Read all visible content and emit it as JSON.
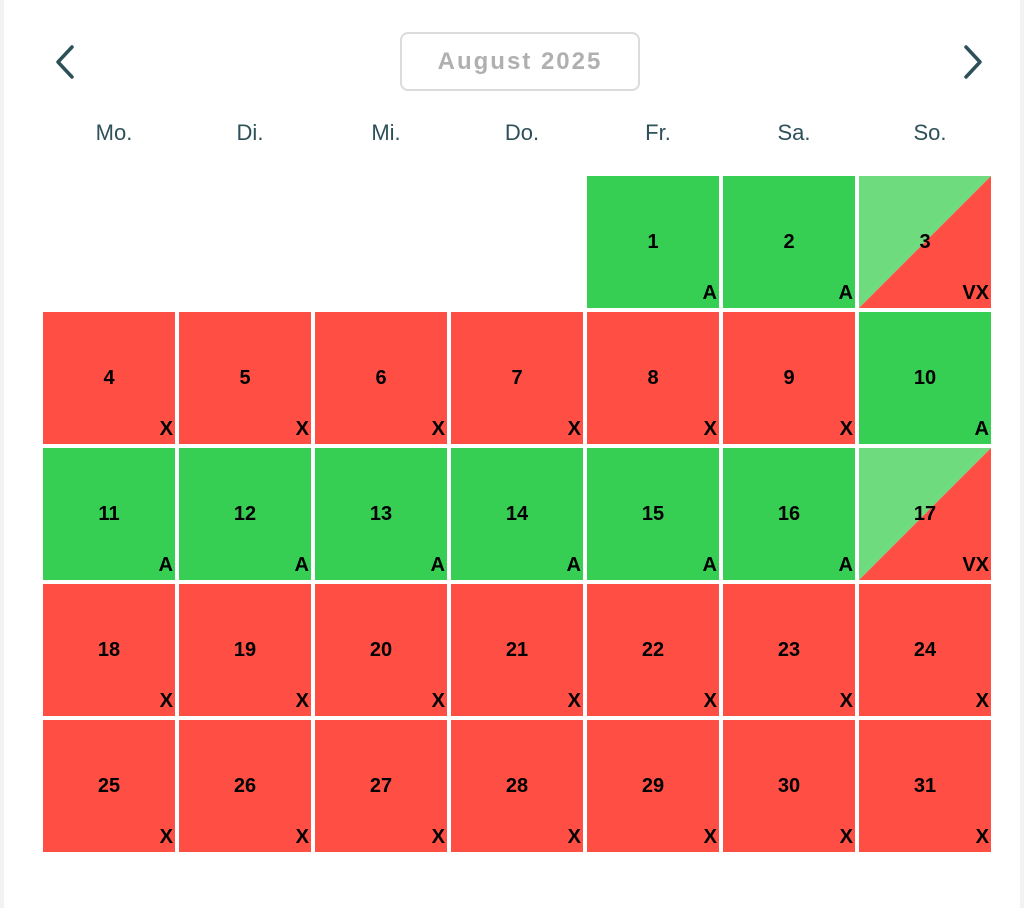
{
  "calendar": {
    "month_label": "August 2025",
    "prev_icon": "chevron-left-icon",
    "next_icon": "chevron-right-icon",
    "weekdays": [
      "Mo.",
      "Di.",
      "Mi.",
      "Do.",
      "Fr.",
      "Sa.",
      "So."
    ],
    "leading_empty_days": 4,
    "colors": {
      "available": "#37cf53",
      "unavailable": "#ff4f45",
      "split_light": "#6edb7f"
    },
    "days": [
      {
        "day": "1",
        "status": "A",
        "type": "available"
      },
      {
        "day": "2",
        "status": "A",
        "type": "available"
      },
      {
        "day": "3",
        "status": "VX",
        "type": "split"
      },
      {
        "day": "4",
        "status": "X",
        "type": "unavailable"
      },
      {
        "day": "5",
        "status": "X",
        "type": "unavailable"
      },
      {
        "day": "6",
        "status": "X",
        "type": "unavailable"
      },
      {
        "day": "7",
        "status": "X",
        "type": "unavailable"
      },
      {
        "day": "8",
        "status": "X",
        "type": "unavailable"
      },
      {
        "day": "9",
        "status": "X",
        "type": "unavailable"
      },
      {
        "day": "10",
        "status": "A",
        "type": "available"
      },
      {
        "day": "11",
        "status": "A",
        "type": "available"
      },
      {
        "day": "12",
        "status": "A",
        "type": "available"
      },
      {
        "day": "13",
        "status": "A",
        "type": "available"
      },
      {
        "day": "14",
        "status": "A",
        "type": "available"
      },
      {
        "day": "15",
        "status": "A",
        "type": "available"
      },
      {
        "day": "16",
        "status": "A",
        "type": "available"
      },
      {
        "day": "17",
        "status": "VX",
        "type": "split"
      },
      {
        "day": "18",
        "status": "X",
        "type": "unavailable"
      },
      {
        "day": "19",
        "status": "X",
        "type": "unavailable"
      },
      {
        "day": "20",
        "status": "X",
        "type": "unavailable"
      },
      {
        "day": "21",
        "status": "X",
        "type": "unavailable"
      },
      {
        "day": "22",
        "status": "X",
        "type": "unavailable"
      },
      {
        "day": "23",
        "status": "X",
        "type": "unavailable"
      },
      {
        "day": "24",
        "status": "X",
        "type": "unavailable"
      },
      {
        "day": "25",
        "status": "X",
        "type": "unavailable"
      },
      {
        "day": "26",
        "status": "X",
        "type": "unavailable"
      },
      {
        "day": "27",
        "status": "X",
        "type": "unavailable"
      },
      {
        "day": "28",
        "status": "X",
        "type": "unavailable"
      },
      {
        "day": "29",
        "status": "X",
        "type": "unavailable"
      },
      {
        "day": "30",
        "status": "X",
        "type": "unavailable"
      },
      {
        "day": "31",
        "status": "X",
        "type": "unavailable"
      }
    ]
  }
}
